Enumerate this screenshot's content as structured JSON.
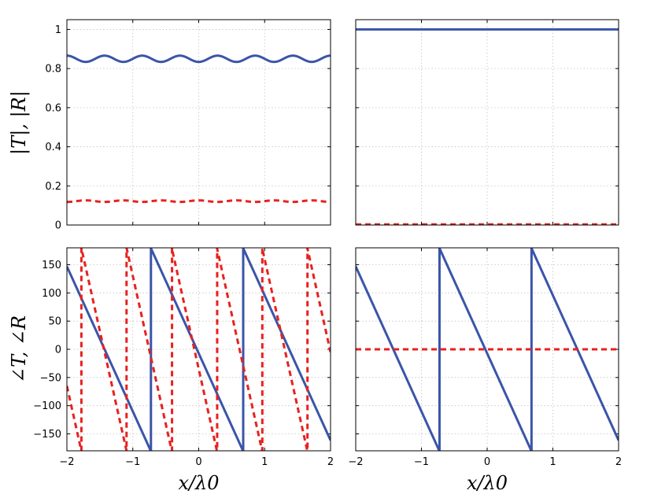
{
  "colors": {
    "transmission": "#3a55a8",
    "reflection": "#e8211f"
  },
  "chart_data": [
    {
      "id": "tl",
      "type": "line",
      "xlim": [
        -2,
        2
      ],
      "ylim": [
        0,
        1.05
      ],
      "xticks": [
        -2,
        -1,
        0,
        1,
        2
      ],
      "xtick_labels": [],
      "yticks": [
        0,
        0.2,
        0.4,
        0.6,
        0.8,
        1
      ],
      "ytick_labels": [
        "0",
        "0.2",
        "0.4",
        "0.6",
        "0.8",
        "1"
      ],
      "ylabel": "|T|, |R|",
      "xlabel": "",
      "grid": true,
      "series": [
        {
          "style": "solid",
          "color": "#3a55a8",
          "kind": "sine",
          "offset": 0.85,
          "amplitude": 0.016,
          "periods": 7,
          "phase": 0
        },
        {
          "style": "dashed",
          "color": "#e8211f",
          "kind": "sine",
          "offset": 0.122,
          "amplitude": 0.004,
          "periods": 7,
          "phase": 3.1416
        }
      ]
    },
    {
      "id": "tr",
      "type": "line",
      "xlim": [
        -2,
        2
      ],
      "ylim": [
        0,
        1.05
      ],
      "xticks": [
        -2,
        -1,
        0,
        1,
        2
      ],
      "xtick_labels": [],
      "yticks": [
        0,
        0.2,
        0.4,
        0.6,
        0.8,
        1
      ],
      "ytick_labels": [],
      "ylabel": "",
      "xlabel": "",
      "grid": true,
      "series": [
        {
          "style": "solid",
          "color": "#3a55a8",
          "kind": "const",
          "value": 1.0
        },
        {
          "style": "dashed",
          "color": "#e8211f",
          "kind": "const",
          "value": 0.003
        }
      ]
    },
    {
      "id": "bl",
      "type": "line",
      "xlim": [
        -2,
        2
      ],
      "ylim": [
        -180,
        180
      ],
      "xticks": [
        -2,
        -1,
        0,
        1,
        2
      ],
      "xtick_labels": [
        "−2",
        "−1",
        "0",
        "1",
        "2"
      ],
      "yticks": [
        -150,
        -100,
        -50,
        0,
        50,
        100,
        150
      ],
      "ytick_labels": [
        "−150",
        "−100",
        "−50",
        "0",
        "50",
        "100",
        "150"
      ],
      "ylabel": "∠T, ∠R",
      "xlabel": "x/λ0",
      "grid": true,
      "series": [
        {
          "style": "solid",
          "color": "#3a55a8",
          "kind": "sawtooth",
          "start_value": 147,
          "slope": -257.1
        },
        {
          "style": "dashed",
          "color": "#e8211f",
          "kind": "sawtooth",
          "start_value": -65,
          "slope": -525
        }
      ]
    },
    {
      "id": "br",
      "type": "line",
      "xlim": [
        -2,
        2
      ],
      "ylim": [
        -180,
        180
      ],
      "xticks": [
        -2,
        -1,
        0,
        1,
        2
      ],
      "xtick_labels": [
        "−2",
        "−1",
        "0",
        "1",
        "2"
      ],
      "yticks": [
        -150,
        -100,
        -50,
        0,
        50,
        100,
        150
      ],
      "ytick_labels": [],
      "ylabel": "",
      "xlabel": "x/λ0",
      "grid": true,
      "series": [
        {
          "style": "solid",
          "color": "#3a55a8",
          "kind": "sawtooth",
          "start_value": 147,
          "slope": -257.1
        },
        {
          "style": "dashed",
          "color": "#e8211f",
          "kind": "const",
          "value": 0
        }
      ]
    }
  ]
}
